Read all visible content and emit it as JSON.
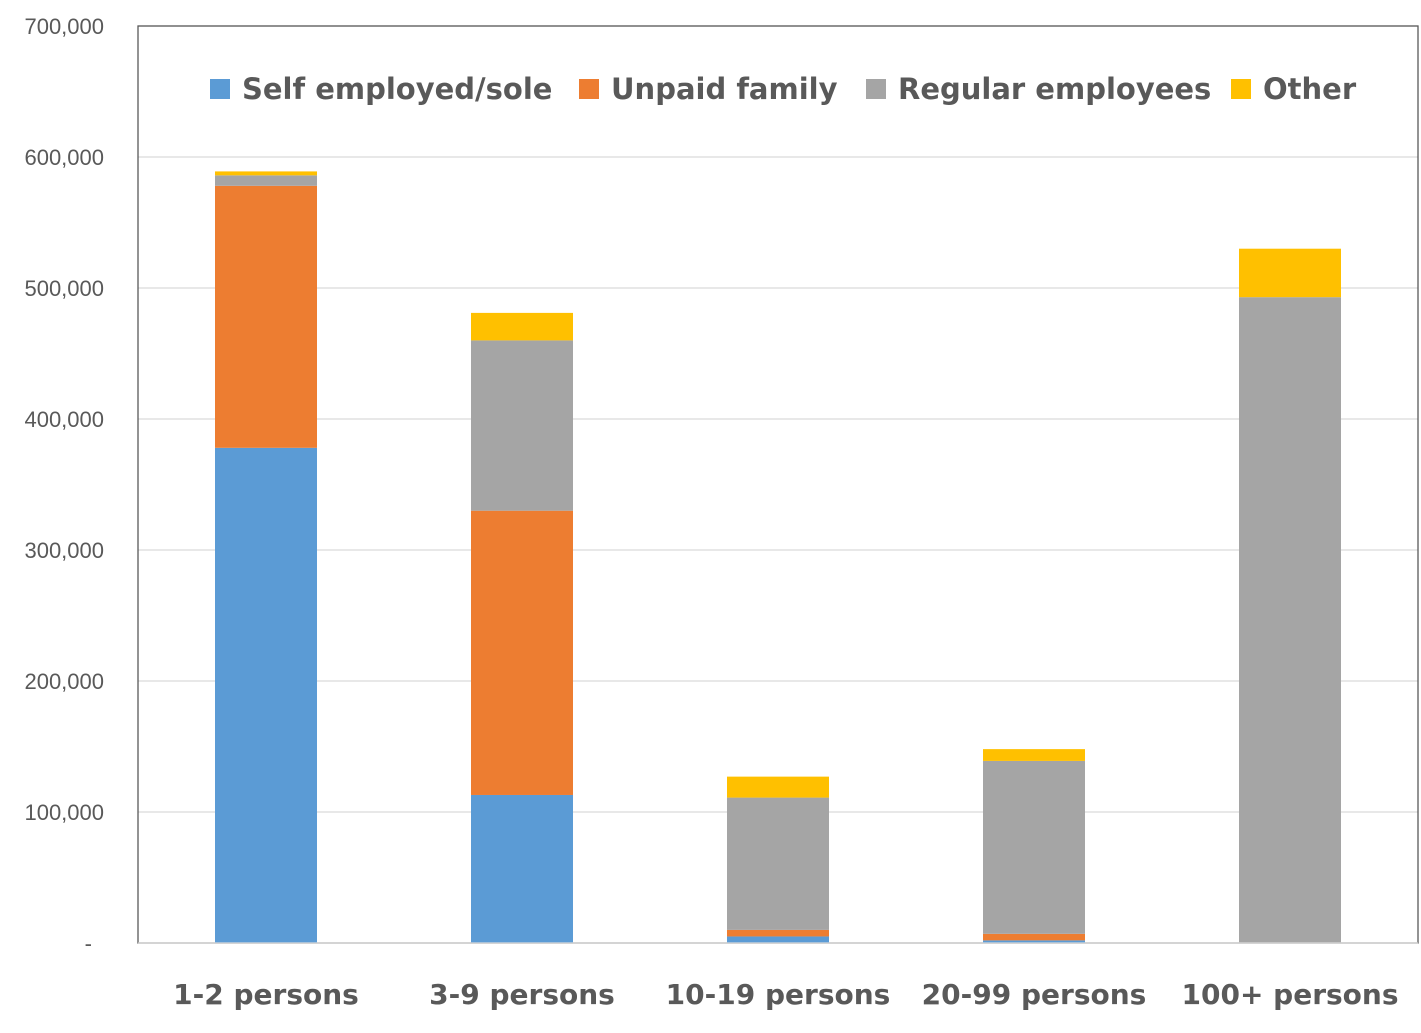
{
  "chart_data": {
    "type": "bar",
    "stacked": true,
    "title": "",
    "xlabel": "",
    "ylabel": "",
    "categories": [
      "1-2 persons",
      "3-9 persons",
      "10-19 persons",
      "20-99 persons",
      "100+ persons"
    ],
    "series": [
      {
        "name": "Self employed/sole",
        "color": "#5B9BD5",
        "values": [
          378000,
          113000,
          5000,
          2000,
          0
        ]
      },
      {
        "name": "Unpaid family",
        "color": "#ED7D31",
        "values": [
          200000,
          217000,
          5000,
          5000,
          0
        ]
      },
      {
        "name": "Regular employees",
        "color": "#A5A5A5",
        "values": [
          8000,
          130000,
          101000,
          132000,
          493000
        ]
      },
      {
        "name": "Other",
        "color": "#FFC000",
        "values": [
          3000,
          21000,
          16000,
          9000,
          37000
        ]
      }
    ],
    "ylim": [
      0,
      700000
    ],
    "yticks": [
      {
        "value": 0,
        "label": "-"
      },
      {
        "value": 100000,
        "label": "100,000"
      },
      {
        "value": 200000,
        "label": "200,000"
      },
      {
        "value": 300000,
        "label": "300,000"
      },
      {
        "value": 400000,
        "label": "400,000"
      },
      {
        "value": 500000,
        "label": "500,000"
      },
      {
        "value": 600000,
        "label": "600,000"
      },
      {
        "value": 700000,
        "label": "700,000"
      }
    ],
    "grid": true,
    "legend_position": "top"
  }
}
